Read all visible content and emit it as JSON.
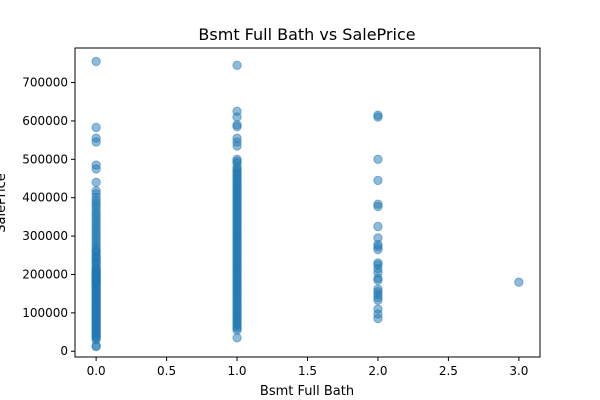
{
  "chart_data": {
    "type": "scatter",
    "title": "Bsmt Full Bath vs SalePrice",
    "xlabel": "Bsmt Full Bath",
    "ylabel": "SalePrice",
    "xlim": [
      -0.15,
      3.15
    ],
    "ylim": [
      -15000,
      790000
    ],
    "x_ticks": [
      0.0,
      0.5,
      1.0,
      1.5,
      2.0,
      2.5,
      3.0
    ],
    "x_tick_labels": [
      "0.0",
      "0.5",
      "1.0",
      "1.5",
      "2.0",
      "2.5",
      "3.0"
    ],
    "y_ticks": [
      0,
      100000,
      200000,
      300000,
      400000,
      500000,
      600000,
      700000
    ],
    "y_tick_labels": [
      "0",
      "100000",
      "200000",
      "300000",
      "400000",
      "500000",
      "600000",
      "700000"
    ],
    "grid": false,
    "marker_color": "#1f77b4",
    "marker_alpha": 0.5,
    "points": {
      "x": [
        0,
        0,
        0,
        0,
        0,
        0,
        0,
        0,
        0,
        0,
        0,
        0,
        0,
        0,
        0,
        0,
        0,
        0,
        0,
        0,
        0,
        0,
        0,
        0,
        0,
        0,
        0,
        0,
        0,
        0,
        0,
        0,
        0,
        0,
        0,
        0,
        0,
        0,
        0,
        0,
        0,
        0,
        0,
        0,
        0,
        0,
        0,
        0,
        0,
        0,
        0,
        0,
        0,
        0,
        0,
        0,
        0,
        0,
        0,
        0,
        0,
        0,
        0,
        0,
        0,
        0,
        0,
        0,
        0,
        0,
        0,
        0,
        0,
        0,
        0,
        0,
        0,
        0,
        0,
        0,
        0,
        0,
        0,
        0,
        0,
        0,
        0,
        0,
        0,
        0,
        0,
        0,
        0,
        0,
        0,
        0,
        0,
        0,
        0,
        0,
        1,
        1,
        1,
        1,
        1,
        1,
        1,
        1,
        1,
        1,
        1,
        1,
        1,
        1,
        1,
        1,
        1,
        1,
        1,
        1,
        1,
        1,
        1,
        1,
        1,
        1,
        1,
        1,
        1,
        1,
        1,
        1,
        1,
        1,
        1,
        1,
        1,
        1,
        1,
        1,
        1,
        1,
        1,
        1,
        1,
        1,
        1,
        1,
        1,
        1,
        1,
        1,
        1,
        1,
        1,
        1,
        1,
        1,
        1,
        1,
        1,
        1,
        1,
        1,
        1,
        1,
        1,
        1,
        1,
        1,
        1,
        1,
        1,
        1,
        1,
        1,
        1,
        1,
        1,
        1,
        1,
        1,
        1,
        1,
        1,
        1,
        1,
        1,
        1,
        1,
        1,
        1,
        1,
        1,
        1,
        1,
        1,
        1,
        2,
        2,
        2,
        2,
        2,
        2,
        2,
        2,
        2,
        2,
        2,
        2,
        2,
        2,
        2,
        2,
        2,
        2,
        2,
        2,
        2,
        2,
        2,
        2,
        2,
        3
      ],
      "y": [
        755000,
        583000,
        555000,
        545000,
        485000,
        475000,
        440000,
        418000,
        410000,
        400000,
        392000,
        385000,
        378000,
        370000,
        362000,
        355000,
        348000,
        340000,
        333000,
        326000,
        319000,
        312000,
        305000,
        298000,
        291000,
        284000,
        277000,
        270000,
        263000,
        256000,
        249000,
        242000,
        235000,
        228000,
        221000,
        214000,
        207000,
        200000,
        195000,
        190000,
        185000,
        180000,
        175000,
        170000,
        165000,
        160000,
        155000,
        150000,
        145000,
        140000,
        135000,
        130000,
        125000,
        120000,
        115000,
        110000,
        105000,
        100000,
        95000,
        90000,
        85000,
        80000,
        75000,
        70000,
        65000,
        60000,
        55000,
        50000,
        45000,
        40000,
        35000,
        30000,
        15000,
        12000,
        210000,
        205000,
        198000,
        187000,
        177000,
        168000,
        158000,
        148000,
        138000,
        128000,
        118000,
        108000,
        98000,
        88000,
        78000,
        68000,
        58000,
        48000,
        38000,
        260000,
        245000,
        232000,
        218000,
        202000,
        193000,
        182000,
        745000,
        625000,
        610000,
        590000,
        585000,
        555000,
        545000,
        535000,
        500000,
        495000,
        475000,
        465000,
        455000,
        445000,
        435000,
        425000,
        415000,
        405000,
        395000,
        385000,
        375000,
        365000,
        355000,
        345000,
        335000,
        325000,
        315000,
        305000,
        295000,
        285000,
        275000,
        265000,
        255000,
        245000,
        235000,
        225000,
        215000,
        205000,
        195000,
        185000,
        175000,
        165000,
        155000,
        145000,
        135000,
        125000,
        115000,
        105000,
        95000,
        85000,
        75000,
        65000,
        60000,
        55000,
        35000,
        290000,
        270000,
        250000,
        230000,
        210000,
        190000,
        170000,
        150000,
        130000,
        110000,
        90000,
        70000,
        280000,
        260000,
        240000,
        220000,
        200000,
        180000,
        160000,
        140000,
        120000,
        100000,
        80000,
        310000,
        300000,
        320000,
        330000,
        340000,
        350000,
        360000,
        370000,
        380000,
        390000,
        400000,
        410000,
        420000,
        430000,
        440000,
        450000,
        460000,
        470000,
        480000,
        490000,
        615000,
        610000,
        500000,
        445000,
        383000,
        377000,
        325000,
        295000,
        278000,
        272000,
        265000,
        230000,
        225000,
        215000,
        205000,
        190000,
        185000,
        162000,
        155000,
        148000,
        140000,
        133000,
        110000,
        97000,
        85000,
        180000
      ]
    }
  }
}
